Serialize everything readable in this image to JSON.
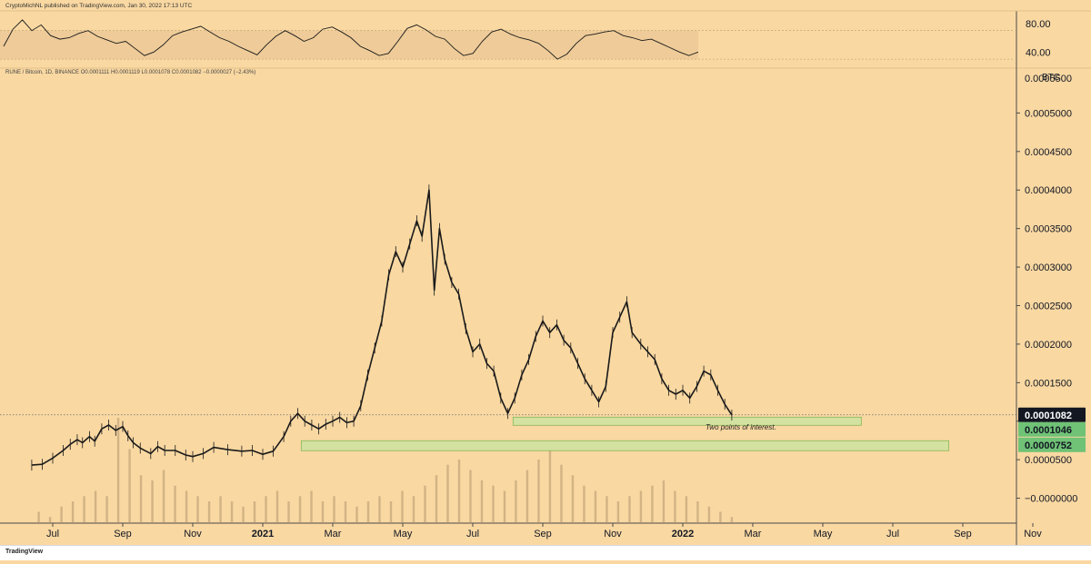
{
  "header": {
    "caption": "CryptoMichNL published on TradingView.com, Jan 30, 2022 17:13 UTC",
    "symbol_info": "RUNE / Bitcoin, 1D, BINANCE  O0.0001111  H0.0001119  L0.0001078  C0.0001082  −0.0000027 (−2.43%)"
  },
  "footer": {
    "logo": "TradingView"
  },
  "annotation": {
    "text": "Two points of interest."
  },
  "colors": {
    "background": "#f9d8a2",
    "candles": "#1a1a1a",
    "zone_fill": "#cfe3a1",
    "zone_stroke": "#7fb34f",
    "price_tag": "#131722",
    "support_tag": "#6fc276",
    "rsi_band": "#ecc997"
  },
  "chart_data": [
    {
      "type": "line",
      "name": "rsi",
      "ylim": [
        20,
        95
      ],
      "yticks": [
        80,
        40
      ],
      "ytick_labels": [
        "80.00",
        "40.00"
      ],
      "band": [
        30,
        70
      ],
      "values": [
        48,
        72,
        85,
        70,
        78,
        63,
        58,
        60,
        66,
        70,
        62,
        57,
        52,
        55,
        45,
        35,
        40,
        50,
        63,
        68,
        72,
        76,
        68,
        60,
        55,
        48,
        42,
        36,
        50,
        62,
        70,
        63,
        55,
        60,
        72,
        75,
        68,
        60,
        48,
        42,
        35,
        38,
        55,
        73,
        78,
        71,
        62,
        58,
        45,
        35,
        38,
        55,
        68,
        72,
        65,
        60,
        57,
        52,
        42,
        30,
        37,
        52,
        63,
        65,
        68,
        70,
        63,
        60,
        56,
        58,
        52,
        46,
        40,
        35,
        40
      ]
    },
    {
      "type": "line",
      "name": "price",
      "ylabel": "BTC",
      "ylim": [
        -3e-05,
        0.00055
      ],
      "yticks": [
        0,
        5e-05,
        0.0001,
        0.00015,
        0.0002,
        0.00025,
        0.0003,
        0.00035,
        0.0004,
        0.00045,
        0.0005,
        0.00055
      ],
      "ytick_labels": [
        "−0.0000000",
        "0.0000500",
        "0.0001000",
        "0.0001500",
        "0.0002000",
        "0.0002500",
        "0.0003000",
        "0.0003500",
        "0.0004000",
        "0.0004500",
        "0.0005000",
        "0.0005500"
      ],
      "x_ticks": [
        {
          "label": "Jul",
          "month": 0
        },
        {
          "label": "Sep",
          "month": 2
        },
        {
          "label": "Nov",
          "month": 4
        },
        {
          "label": "2021",
          "month": 6,
          "bold": true
        },
        {
          "label": "Mar",
          "month": 8
        },
        {
          "label": "May",
          "month": 10
        },
        {
          "label": "Jul",
          "month": 12
        },
        {
          "label": "Sep",
          "month": 14
        },
        {
          "label": "Nov",
          "month": 16
        },
        {
          "label": "2022",
          "month": 18,
          "bold": true
        },
        {
          "label": "Mar",
          "month": 20
        },
        {
          "label": "May",
          "month": 22
        },
        {
          "label": "Jul",
          "month": 24
        },
        {
          "label": "Sep",
          "month": 26
        },
        {
          "label": "Nov",
          "month": 28
        }
      ],
      "price_path": [
        [
          -0.6,
          4.3e-05
        ],
        [
          -0.3,
          4.4e-05
        ],
        [
          0,
          5.2e-05
        ],
        [
          0.3,
          6.2e-05
        ],
        [
          0.5,
          7e-05
        ],
        [
          0.7,
          7.6e-05
        ],
        [
          0.85,
          7.2e-05
        ],
        [
          1.05,
          8e-05
        ],
        [
          1.2,
          7.4e-05
        ],
        [
          1.4,
          9e-05
        ],
        [
          1.6,
          9.5e-05
        ],
        [
          1.8,
          8.8e-05
        ],
        [
          2.0,
          9.3e-05
        ],
        [
          2.15,
          8.1e-05
        ],
        [
          2.3,
          7.2e-05
        ],
        [
          2.5,
          6.5e-05
        ],
        [
          2.8,
          5.8e-05
        ],
        [
          3.0,
          6.7e-05
        ],
        [
          3.2,
          6.2e-05
        ],
        [
          3.5,
          6.2e-05
        ],
        [
          3.8,
          5.6e-05
        ],
        [
          4.0,
          5.4e-05
        ],
        [
          4.3,
          5.8e-05
        ],
        [
          4.6,
          6.6e-05
        ],
        [
          5.0,
          6.3e-05
        ],
        [
          5.4,
          6.1e-05
        ],
        [
          5.7,
          6.2e-05
        ],
        [
          6.0,
          5.7e-05
        ],
        [
          6.3,
          6.1e-05
        ],
        [
          6.6,
          8e-05
        ],
        [
          6.8,
          0.0001
        ],
        [
          7.0,
          0.00011
        ],
        [
          7.2,
          0.0001
        ],
        [
          7.4,
          9.5e-05
        ],
        [
          7.6,
          9e-05
        ],
        [
          7.8,
          9.6e-05
        ],
        [
          8.0,
          0.0001
        ],
        [
          8.2,
          0.000105
        ],
        [
          8.4,
          9.8e-05
        ],
        [
          8.6,
          0.0001
        ],
        [
          8.8,
          0.00012
        ],
        [
          9.0,
          0.00016
        ],
        [
          9.2,
          0.000195
        ],
        [
          9.4,
          0.00023
        ],
        [
          9.6,
          0.00029
        ],
        [
          9.8,
          0.00032
        ],
        [
          10.0,
          0.0003
        ],
        [
          10.2,
          0.00033
        ],
        [
          10.4,
          0.00036
        ],
        [
          10.55,
          0.00034
        ],
        [
          10.75,
          0.0004
        ],
        [
          10.9,
          0.00027
        ],
        [
          11.05,
          0.00035
        ],
        [
          11.2,
          0.00031
        ],
        [
          11.4,
          0.00028
        ],
        [
          11.6,
          0.000265
        ],
        [
          11.8,
          0.00022
        ],
        [
          12.0,
          0.00019
        ],
        [
          12.2,
          0.0002
        ],
        [
          12.4,
          0.000175
        ],
        [
          12.6,
          0.000165
        ],
        [
          12.8,
          0.00013
        ],
        [
          13.0,
          0.00011
        ],
        [
          13.2,
          0.00013
        ],
        [
          13.4,
          0.00016
        ],
        [
          13.6,
          0.00018
        ],
        [
          13.8,
          0.00021
        ],
        [
          14.0,
          0.00023
        ],
        [
          14.2,
          0.000215
        ],
        [
          14.4,
          0.000225
        ],
        [
          14.6,
          0.000205
        ],
        [
          14.8,
          0.000195
        ],
        [
          15.0,
          0.000175
        ],
        [
          15.2,
          0.000155
        ],
        [
          15.4,
          0.00014
        ],
        [
          15.6,
          0.000125
        ],
        [
          15.8,
          0.000145
        ],
        [
          16.0,
          0.000215
        ],
        [
          16.2,
          0.000235
        ],
        [
          16.4,
          0.000255
        ],
        [
          16.55,
          0.000215
        ],
        [
          16.8,
          0.0002
        ],
        [
          17.0,
          0.00019
        ],
        [
          17.2,
          0.00018
        ],
        [
          17.4,
          0.000155
        ],
        [
          17.6,
          0.00014
        ],
        [
          17.8,
          0.000135
        ],
        [
          18.0,
          0.00014
        ],
        [
          18.2,
          0.00013
        ],
        [
          18.4,
          0.000145
        ],
        [
          18.6,
          0.000165
        ],
        [
          18.8,
          0.00016
        ],
        [
          19.0,
          0.00014
        ],
        [
          19.2,
          0.000122
        ],
        [
          19.4,
          0.000108
        ]
      ],
      "volume": [
        2,
        1,
        3,
        4,
        5,
        6,
        5,
        20,
        14,
        9,
        8,
        10,
        7,
        6,
        5,
        4,
        5,
        4,
        3,
        4,
        5,
        6,
        4,
        5,
        6,
        4,
        5,
        4,
        3,
        4,
        5,
        4,
        6,
        5,
        7,
        9,
        11,
        12,
        10,
        8,
        7,
        6,
        8,
        10,
        12,
        14,
        11,
        9,
        7,
        6,
        5,
        4,
        5,
        6,
        7,
        8,
        6,
        5,
        4,
        3,
        2,
        1
      ],
      "current_price": {
        "value": 0.0001082,
        "label": "0.0001082"
      },
      "supports": [
        {
          "value": 0.0001046,
          "label": "0.0001046",
          "from_month": 13.15,
          "to_month": 23.1
        },
        {
          "value": 7.52e-05,
          "label": "0.0000752",
          "from_month": 7.1,
          "to_month": 25.6
        }
      ]
    }
  ]
}
